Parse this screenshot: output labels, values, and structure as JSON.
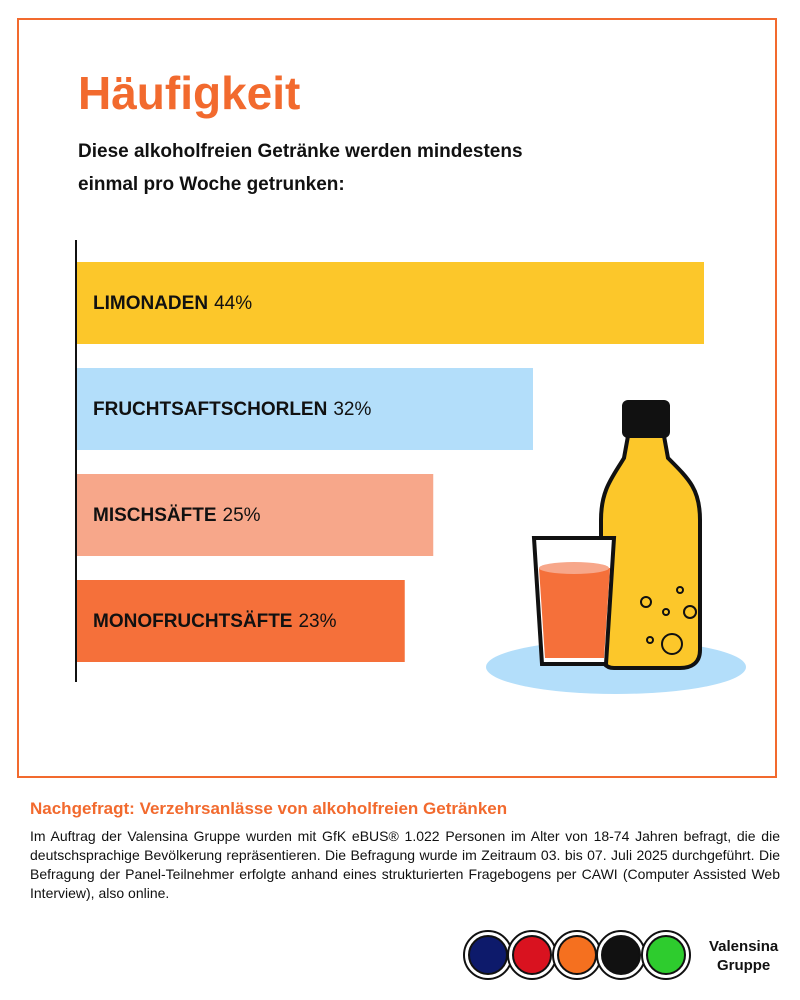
{
  "chart_data": {
    "type": "bar",
    "orientation": "horizontal",
    "title": "Häufigkeit",
    "subtitle": "Diese alkoholfreien Getränke werden mindestens einmal pro Woche getrunken:",
    "categories": [
      "LIMONADEN",
      "FRUCHTSAFTSCHORLEN",
      "MISCHSÄFTE",
      "MONOFRUCHTSÄFTE"
    ],
    "values": [
      44,
      32,
      25,
      23
    ],
    "value_labels": [
      "44%",
      "32%",
      "25%",
      "23%"
    ],
    "colors": [
      "#fcc72a",
      "#b3defa",
      "#f7a78a",
      "#f5703a"
    ]
  },
  "footer": {
    "heading": "Nachgefragt: Verzehrsanlässe von alkoholfreien Getränken",
    "text": "Im Auftrag der Valensina Gruppe wurden mit GfK eBUS® 1.022 Personen im Alter von 18-74 Jahren befragt, die die deutschsprachige Bevölkerung repräsentieren. Die Befragung wurde im Zeitraum 03. bis 07. Juli 2025 durchgeführt. Die Befragung der Panel-Teilnehmer erfolgte anhand eines strukturierten Fragebogens per CAWI (Computer Assisted Web Interview), also online."
  },
  "logo": [
    "Valensina",
    "Gruppe"
  ]
}
